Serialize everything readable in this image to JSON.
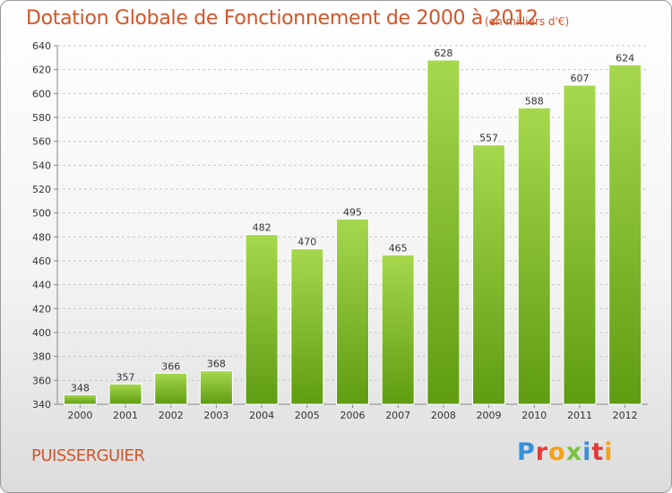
{
  "header": {
    "title": "Dotation Globale de Fonctionnement de 2000 à 2012",
    "unit": "(en milliers d'€)"
  },
  "footer": {
    "commune": "PUISSERGUIER",
    "logo_letters": [
      "P",
      "r",
      "o",
      "x",
      "i",
      "t",
      "i"
    ],
    "logo_colors": [
      "#3a8fd6",
      "#e23b3b",
      "#f3a21a",
      "#7cc242",
      "#3a8fd6",
      "#e23b3b",
      "#f3a21a"
    ]
  },
  "colors": {
    "bar_top": "#a6d84e",
    "bar_bottom": "#5f9c12",
    "grid": "#c8c8c8",
    "text_accent": "#d2552a"
  },
  "chart_data": {
    "type": "bar",
    "title": "Dotation Globale de Fonctionnement de 2000 à 2012",
    "subtitle": "(en milliers d'€)",
    "xlabel": "",
    "ylabel": "",
    "categories": [
      "2000",
      "2001",
      "2002",
      "2003",
      "2004",
      "2005",
      "2006",
      "2007",
      "2008",
      "2009",
      "2010",
      "2011",
      "2012"
    ],
    "values": [
      348,
      357,
      366,
      368,
      482,
      470,
      495,
      465,
      628,
      557,
      588,
      607,
      624
    ],
    "ylim": [
      340,
      640
    ],
    "yticks": [
      340,
      360,
      380,
      400,
      420,
      440,
      460,
      480,
      500,
      520,
      540,
      560,
      580,
      600,
      620,
      640
    ],
    "grid": "horizontal dashed",
    "legend": "none"
  }
}
